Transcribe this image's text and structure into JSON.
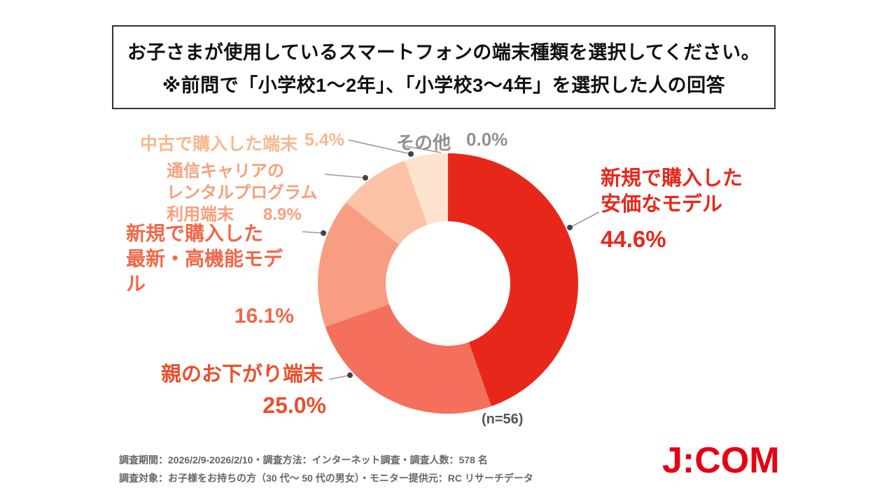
{
  "title": {
    "line1": "お子さまが使用しているスマートフォンの端末種類を選択してください。",
    "line2": "※前問で「小学校1〜2年」、「小学校3〜4年」を選択した人の回答"
  },
  "chart_data": {
    "type": "pie",
    "subtype": "donut",
    "start_angle_deg": 0,
    "direction": "clockwise",
    "sample_note": "(n=56)",
    "segments": [
      {
        "label": "新規で購入した安価なモデル",
        "label_lines": [
          "新規で購入した",
          "安価なモデル"
        ],
        "value": 44.6,
        "display": "44.6%",
        "color": "#e8271b",
        "label_color": "#e8271b"
      },
      {
        "label": "親のお下がり端末",
        "label_lines": [
          "親のお下がり端末"
        ],
        "value": 25.0,
        "display": "25.0%",
        "color": "#f4705c",
        "label_color": "#ea4f2c"
      },
      {
        "label": "新規で購入した最新・高機能モデル",
        "label_lines": [
          "新規で購入した",
          "最新・高機能モデル"
        ],
        "value": 16.1,
        "display": "16.1%",
        "color": "#f89d82",
        "label_color": "#f0684a"
      },
      {
        "label": "通信キャリアのレンタルプログラム利用端末",
        "label_lines": [
          "通信キャリアの",
          "レンタルプログラム",
          "利用端末"
        ],
        "value": 8.9,
        "display": "8.9%",
        "color": "#fbc2a6",
        "label_color": "#f6a07b"
      },
      {
        "label": "中古で購入した端末",
        "label_lines": [
          "中古で購入した端末"
        ],
        "value": 5.4,
        "display": "5.4%",
        "color": "#fde2cd",
        "label_color": "#f8b88e"
      },
      {
        "label": "その他",
        "label_lines": [
          "その他"
        ],
        "value": 0.0,
        "display": "0.0%",
        "color": "#cccccc",
        "label_color": "#919191"
      }
    ]
  },
  "footer": {
    "line1": "調査期間：2026/2/9-2026/2/10・調査方法：インターネット調査・調査人数：578 名",
    "line2": "調査対象：お子様をお持ちの方（30 代〜 50 代の男女）・モニター提供元：RC リサーチデータ",
    "logo": "J:COM"
  }
}
